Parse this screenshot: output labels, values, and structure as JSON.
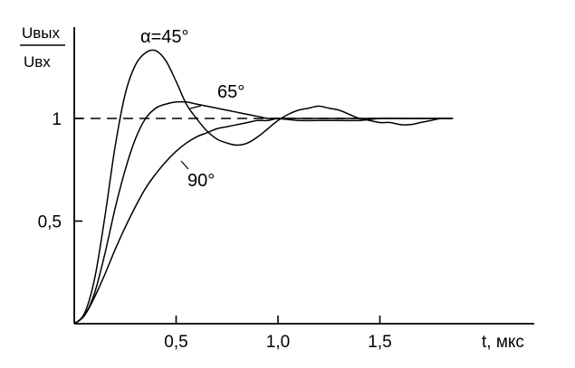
{
  "chart_data": {
    "type": "line",
    "y_label": {
      "numerator": "Uвых",
      "denominator": "Uвх"
    },
    "x_label": "t, мкс",
    "x_ticks": [
      {
        "value": 0.5,
        "label": "0,5"
      },
      {
        "value": 1.0,
        "label": "1,0"
      },
      {
        "value": 1.5,
        "label": "1,5"
      }
    ],
    "y_ticks": [
      {
        "value": 0.5,
        "label": "0,5"
      },
      {
        "value": 1.0,
        "label": "1"
      }
    ],
    "xlim": [
      0,
      2.15
    ],
    "ylim": [
      0,
      1.38
    ],
    "reference_line": {
      "y": 1.0,
      "x_end": 1.86,
      "style": "dashed"
    },
    "series": [
      {
        "name": "α=45°",
        "x": [
          0,
          0.05,
          0.1,
          0.15,
          0.2,
          0.25,
          0.3,
          0.35,
          0.4,
          0.45,
          0.5,
          0.55,
          0.6,
          0.65,
          0.7,
          0.75,
          0.8,
          0.85,
          0.9,
          0.95,
          1.0,
          1.05,
          1.1,
          1.15,
          1.2,
          1.25,
          1.3,
          1.35,
          1.4,
          1.45,
          1.5,
          1.55,
          1.6,
          1.65,
          1.7,
          1.75,
          1.8,
          1.85
        ],
        "y": [
          0,
          0.05,
          0.22,
          0.52,
          0.86,
          1.12,
          1.26,
          1.32,
          1.33,
          1.28,
          1.18,
          1.07,
          1.0,
          0.94,
          0.9,
          0.88,
          0.87,
          0.88,
          0.91,
          0.95,
          0.99,
          1.02,
          1.04,
          1.05,
          1.06,
          1.05,
          1.04,
          1.02,
          1.0,
          0.99,
          0.98,
          0.98,
          0.97,
          0.97,
          0.98,
          0.99,
          1.0,
          1.0
        ]
      },
      {
        "name": "65°",
        "x": [
          0,
          0.05,
          0.1,
          0.15,
          0.2,
          0.25,
          0.3,
          0.35,
          0.4,
          0.45,
          0.5,
          0.55,
          0.6,
          0.65,
          0.7,
          0.75,
          0.8,
          0.85,
          0.9,
          0.95,
          1.0,
          1.1,
          1.2,
          1.3,
          1.4,
          1.5,
          1.6,
          1.7,
          1.8,
          1.85
        ],
        "y": [
          0,
          0.04,
          0.15,
          0.34,
          0.56,
          0.75,
          0.9,
          1.0,
          1.05,
          1.07,
          1.08,
          1.08,
          1.07,
          1.06,
          1.05,
          1.04,
          1.03,
          1.02,
          1.01,
          1.0,
          1.0,
          0.99,
          0.99,
          0.99,
          0.99,
          1.0,
          1.0,
          1.0,
          1.0,
          1.0
        ]
      },
      {
        "name": "90°",
        "x": [
          0,
          0.05,
          0.1,
          0.15,
          0.2,
          0.25,
          0.3,
          0.35,
          0.4,
          0.45,
          0.5,
          0.55,
          0.6,
          0.65,
          0.7,
          0.75,
          0.8,
          0.85,
          0.9,
          0.95,
          1.0,
          1.1,
          1.2,
          1.3,
          1.4,
          1.5,
          1.6,
          1.7,
          1.8,
          1.85
        ],
        "y": [
          0,
          0.04,
          0.13,
          0.24,
          0.36,
          0.47,
          0.57,
          0.66,
          0.73,
          0.79,
          0.84,
          0.88,
          0.91,
          0.93,
          0.95,
          0.96,
          0.97,
          0.98,
          0.99,
          0.99,
          1.0,
          1.0,
          1.0,
          1.0,
          1.0,
          1.0,
          1.0,
          1.0,
          1.0,
          1.0
        ]
      }
    ]
  }
}
